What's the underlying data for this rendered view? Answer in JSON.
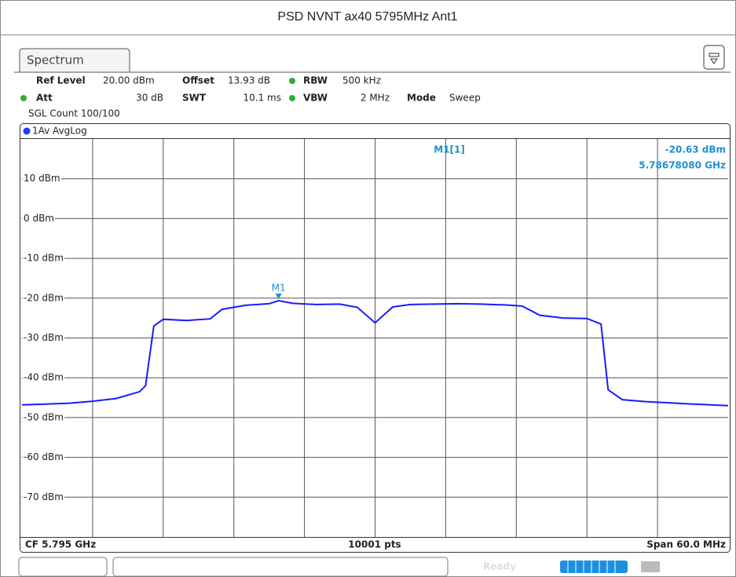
{
  "screen": {
    "window_title": "PSD NVNT ax40 5795MHz Ant1",
    "tab": "Spectrum",
    "settings": [
      [
        "Ref Level",
        "20.00 dBm",
        "Offset",
        "13.93 dB",
        "RBW",
        "500 kHz"
      ],
      [
        "Att",
        "30 dB",
        "SWT",
        "10.1 ms",
        "VBW",
        "2 MHz",
        "Mode",
        "Sweep"
      ]
    ],
    "sgl_count": "SGL Count 100/100",
    "trace_label": "1Av AvgLog",
    "footer": {
      "left": "CF 5.795 GHz",
      "center": "10001 pts",
      "right": "Span 60.0 MHz"
    },
    "status": "Ready"
  },
  "chart_data": {
    "type": "line",
    "x": [
      5.765,
      5.767,
      5.769,
      5.771,
      5.773,
      5.775,
      5.7755,
      5.7762,
      5.777,
      5.779,
      5.781,
      5.782,
      5.784,
      5.786,
      5.7868,
      5.788,
      5.79,
      5.792,
      5.7935,
      5.795,
      5.7965,
      5.798,
      5.8,
      5.802,
      5.804,
      5.806,
      5.8075,
      5.809,
      5.811,
      5.813,
      5.8142,
      5.8148,
      5.816,
      5.818,
      5.82,
      5.822,
      5.825
    ],
    "series": [
      {
        "name": "1Av AvgLog",
        "color": "#1a1aff",
        "values": [
          -46.8,
          -46.6,
          -46.4,
          -45.9,
          -45.2,
          -43.5,
          -42.0,
          -27.0,
          -25.3,
          -25.6,
          -25.2,
          -22.8,
          -21.8,
          -21.4,
          -20.63,
          -21.3,
          -21.6,
          -21.5,
          -22.3,
          -26.2,
          -22.2,
          -21.6,
          -21.5,
          -21.4,
          -21.5,
          -21.7,
          -22.0,
          -24.3,
          -25.0,
          -25.1,
          -26.5,
          -43.0,
          -45.5,
          -46.0,
          -46.3,
          -46.6,
          -47.0
        ]
      }
    ],
    "xlim": [
      5.765,
      5.825
    ],
    "ylim": [
      -80,
      20
    ],
    "yticks": [
      {
        "value": 10,
        "label": "10 dBm"
      },
      {
        "value": 0,
        "label": "0 dBm"
      },
      {
        "value": -10,
        "label": "-10 dBm"
      },
      {
        "value": -20,
        "label": "-20 dBm"
      },
      {
        "value": -30,
        "label": "-30 dBm"
      },
      {
        "value": -40,
        "label": "-40 dBm"
      },
      {
        "value": -50,
        "label": "-50 dBm"
      },
      {
        "value": -60,
        "label": "-60 dBm"
      },
      {
        "value": -70,
        "label": "-70 dBm"
      }
    ],
    "grid": true,
    "marker": {
      "label": "M1",
      "x": 5.7868,
      "y": -20.63,
      "readout": [
        "M1[1]",
        "-20.63 dBm",
        "5.78678080 GHz"
      ]
    }
  }
}
